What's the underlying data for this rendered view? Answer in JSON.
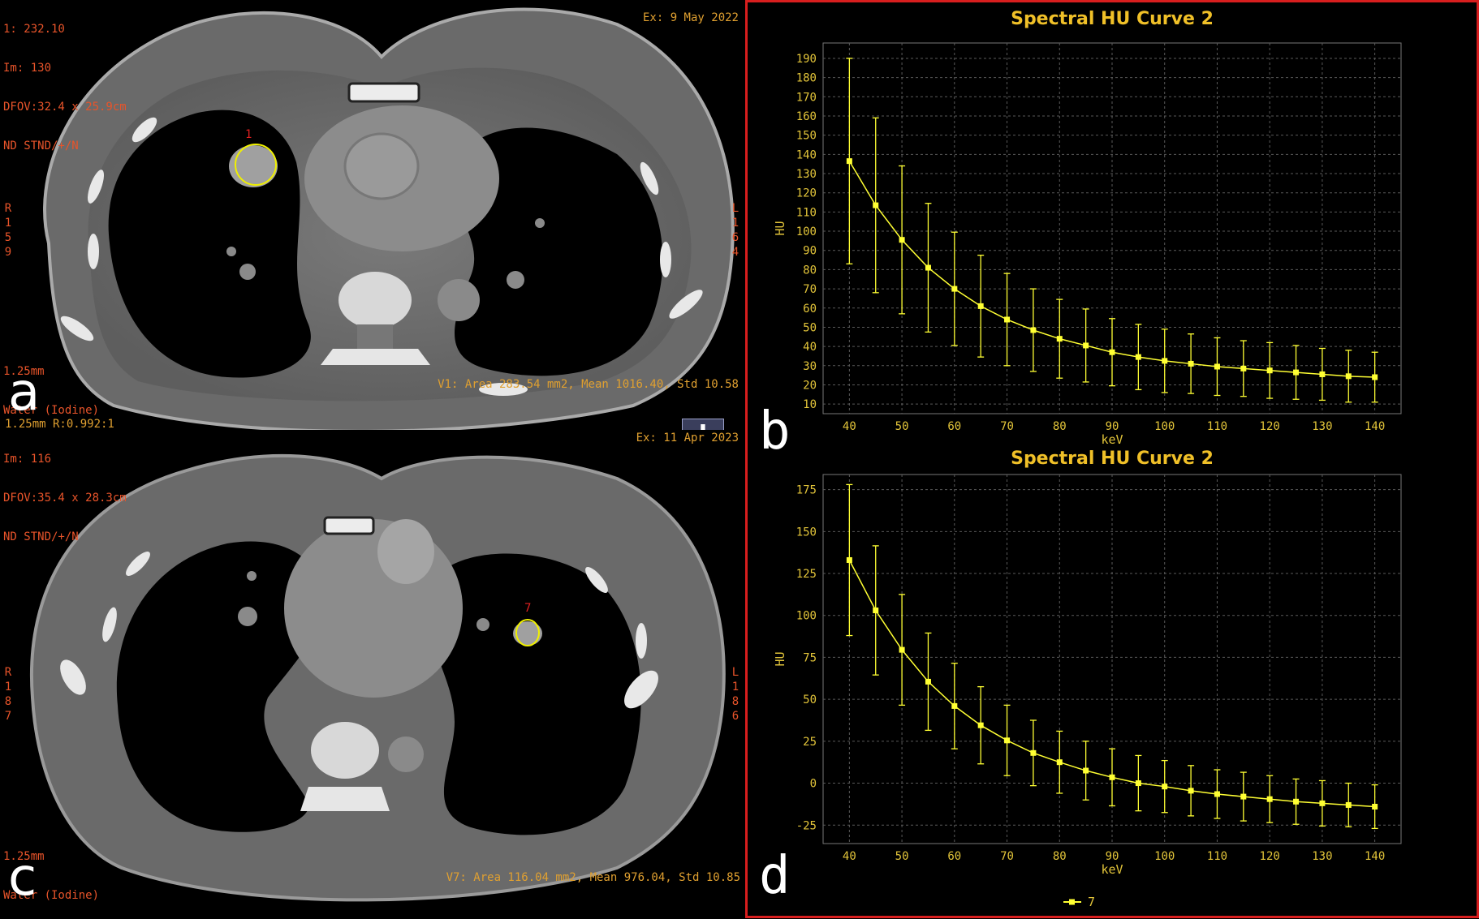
{
  "panels": {
    "a": {
      "letter": "a",
      "header_lines": [
        "1: 232.10",
        "Im: 130",
        "DFOV:32.4 x 25.9cm",
        "ND STND/+/N"
      ],
      "exam_date": "Ex: 9 May 2022",
      "left_side": [
        "R",
        "1",
        "5",
        "9"
      ],
      "right_side": [
        "L",
        "1",
        "6",
        "4"
      ],
      "bottom_lines": [
        "1.25mm",
        "Water (Iodine)"
      ],
      "roi_label": "1",
      "roi_stats": "V1: Area 283.54 mm2, Mean 1016.40, Std 10.58",
      "thickness_ratio": "1.25mm R:0.992:1"
    },
    "c": {
      "letter": "c",
      "header_lines": [
        "Im: 116",
        "DFOV:35.4 x 28.3cm",
        "ND STND/+/N"
      ],
      "exam_date": "Ex: 11 Apr 2023",
      "left_side": [
        "R",
        "1",
        "8",
        "7"
      ],
      "right_side": [
        "L",
        "1",
        "8",
        "6"
      ],
      "bottom_lines": [
        "1.25mm",
        "Water (Iodine)"
      ],
      "roi_label": "7",
      "roi_stats": "V7: Area 116.04 mm2, Mean 976.04, Std 10.85"
    },
    "tool_badge": "I"
  },
  "colors": {
    "chart_line": "#ffff33",
    "chart_grid": "#5a5a5a",
    "axis_text": "#e3c53a",
    "title": "#f0c028",
    "frame": "#d81e1e",
    "overlay_text": "#e8542a"
  },
  "chart_data": [
    {
      "type": "line",
      "panel_letter": "b",
      "title": "Spectral HU Curve 2",
      "xlabel": "keV",
      "ylabel": "HU",
      "xlim": [
        35,
        145
      ],
      "ylim": [
        5,
        198
      ],
      "xticks": [
        40,
        50,
        60,
        70,
        80,
        90,
        100,
        110,
        120,
        130,
        140
      ],
      "yticks": [
        10,
        20,
        30,
        40,
        50,
        60,
        70,
        80,
        90,
        100,
        110,
        120,
        130,
        140,
        150,
        160,
        170,
        180,
        190
      ],
      "grid": true,
      "x": [
        40,
        45,
        50,
        55,
        60,
        65,
        70,
        75,
        80,
        85,
        90,
        95,
        100,
        105,
        110,
        115,
        120,
        125,
        130,
        135,
        140
      ],
      "y": [
        136.5,
        113.5,
        95.5,
        81.0,
        70.0,
        61.0,
        54.0,
        48.5,
        44.0,
        40.5,
        37.0,
        34.5,
        32.5,
        31.0,
        29.5,
        28.5,
        27.5,
        26.5,
        25.5,
        24.5,
        24.0
      ],
      "error": [
        53.5,
        45.5,
        38.5,
        33.5,
        29.5,
        26.5,
        24.0,
        21.5,
        20.5,
        19.0,
        17.5,
        17.0,
        16.5,
        15.5,
        15.0,
        14.5,
        14.5,
        14.0,
        13.5,
        13.5,
        13.0
      ]
    },
    {
      "type": "line",
      "panel_letter": "d",
      "title": "Spectral HU Curve 2",
      "xlabel": "keV",
      "ylabel": "HU",
      "xlim": [
        35,
        145
      ],
      "ylim": [
        -36,
        184
      ],
      "xticks": [
        40,
        50,
        60,
        70,
        80,
        90,
        100,
        110,
        120,
        130,
        140
      ],
      "yticks": [
        -25,
        0,
        25,
        50,
        75,
        100,
        125,
        150,
        175
      ],
      "grid": true,
      "legend": "7",
      "x": [
        40,
        45,
        50,
        55,
        60,
        65,
        70,
        75,
        80,
        85,
        90,
        95,
        100,
        105,
        110,
        115,
        120,
        125,
        130,
        135,
        140
      ],
      "y": [
        133.0,
        103.0,
        79.5,
        60.5,
        46.0,
        34.5,
        25.5,
        18.0,
        12.5,
        7.5,
        3.5,
        0.0,
        -2.0,
        -4.5,
        -6.5,
        -8.0,
        -9.5,
        -11.0,
        -12.0,
        -13.0,
        -14.0
      ],
      "error": [
        45.0,
        38.5,
        33.0,
        29.0,
        25.5,
        23.0,
        21.0,
        19.5,
        18.5,
        17.5,
        17.0,
        16.5,
        15.5,
        15.0,
        14.5,
        14.5,
        14.0,
        13.5,
        13.5,
        13.0,
        13.0
      ]
    }
  ]
}
